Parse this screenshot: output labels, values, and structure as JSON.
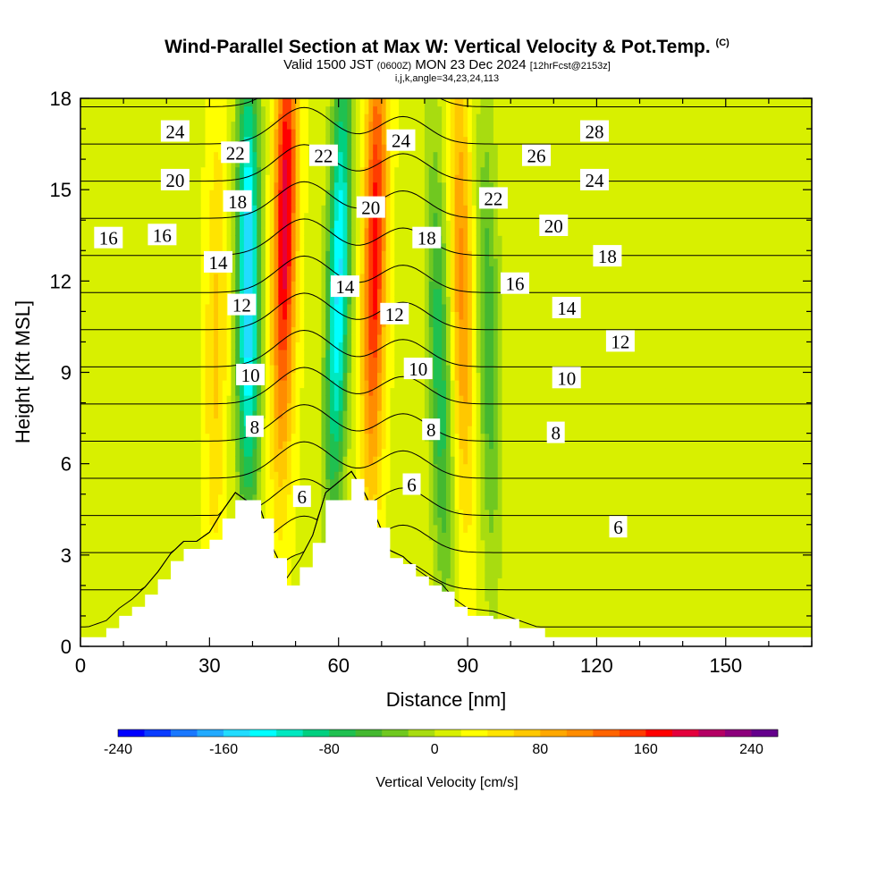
{
  "title": {
    "main": "Wind-Parallel Section at Max W: Vertical Velocity & Pot.Temp.",
    "copyright": "(C)",
    "valid_prefix": "Valid 1500 JST",
    "valid_utc": "(0600Z)",
    "valid_date": "MON 23 Dec 2024",
    "forecast": "[12hrFcst@2153z]",
    "params": "i,j,k,angle=34,23,24,113"
  },
  "chart_data": {
    "type": "heatmap",
    "xlabel": "Distance [nm]",
    "ylabel": "Height [Kft MSL]",
    "xlim": [
      0,
      170
    ],
    "ylim": [
      0,
      18
    ],
    "x_ticks": [
      0,
      30,
      60,
      90,
      120,
      150
    ],
    "x_tick_labels": [
      "0",
      "30",
      "60",
      "90",
      "120",
      "150"
    ],
    "y_ticks": [
      0,
      3,
      6,
      9,
      12,
      15,
      18
    ],
    "y_tick_labels": [
      "0",
      "3",
      "6",
      "9",
      "12",
      "15",
      "18"
    ],
    "background_w_cms": 15,
    "updraft_bands": [
      {
        "x_base": 46,
        "x_top": 48,
        "peak_w_cms": 180,
        "peak_height_kft": 14
      },
      {
        "x_base": 67,
        "x_top": 69,
        "peak_w_cms": 160,
        "peak_height_kft": 13
      },
      {
        "x_base": 90,
        "x_top": 88,
        "peak_w_cms": 90,
        "peak_height_kft": 12
      },
      {
        "x_base": 31,
        "x_top": 32,
        "peak_w_cms": 50,
        "peak_height_kft": 10
      }
    ],
    "downdraft_bands": [
      {
        "x_base": 39,
        "x_top": 39,
        "peak_w_cms": -180,
        "peak_height_kft": 12
      },
      {
        "x_base": 58,
        "x_top": 61,
        "peak_w_cms": -160,
        "peak_height_kft": 12
      },
      {
        "x_base": 85,
        "x_top": 82,
        "peak_w_cms": -90,
        "peak_height_kft": 9
      },
      {
        "x_base": 96,
        "x_top": 94,
        "peak_w_cms": -70,
        "peak_height_kft": 10
      }
    ],
    "terrain_profile": {
      "x": [
        0,
        6,
        9,
        12,
        15,
        18,
        21,
        24,
        27,
        30,
        33,
        36,
        42,
        45,
        48,
        51,
        54,
        57,
        63,
        66,
        69,
        72,
        75,
        78,
        81,
        84,
        87,
        90,
        96,
        102,
        108,
        170
      ],
      "height_kft": [
        0.3,
        0.6,
        1.0,
        1.3,
        1.7,
        2.2,
        2.8,
        3.2,
        3.2,
        3.5,
        4.2,
        4.8,
        4.2,
        2.9,
        2.0,
        2.6,
        3.4,
        4.8,
        5.5,
        4.8,
        3.9,
        2.9,
        2.7,
        2.3,
        2.0,
        1.8,
        1.3,
        1.0,
        0.9,
        0.6,
        0.3,
        0.3
      ]
    },
    "theta_contours": {
      "levels": [
        6,
        8,
        10,
        12,
        14,
        16,
        18,
        20,
        22,
        24,
        26,
        28
      ],
      "contour_labels": [
        {
          "text": "24",
          "x": 22,
          "y": 16.9
        },
        {
          "text": "22",
          "x": 36,
          "y": 16.2
        },
        {
          "text": "20",
          "x": 22,
          "y": 15.3
        },
        {
          "text": "18",
          "x": 36.5,
          "y": 14.6
        },
        {
          "text": "16",
          "x": 6.5,
          "y": 13.4
        },
        {
          "text": "16",
          "x": 19,
          "y": 13.5
        },
        {
          "text": "14",
          "x": 32,
          "y": 12.6
        },
        {
          "text": "12",
          "x": 37.5,
          "y": 11.2
        },
        {
          "text": "10",
          "x": 39.5,
          "y": 8.9
        },
        {
          "text": "8",
          "x": 40.5,
          "y": 7.2
        },
        {
          "text": "6",
          "x": 51.5,
          "y": 4.9
        },
        {
          "text": "22",
          "x": 56.5,
          "y": 16.1
        },
        {
          "text": "14",
          "x": 61.5,
          "y": 11.8
        },
        {
          "text": "20",
          "x": 67.5,
          "y": 14.4
        },
        {
          "text": "24",
          "x": 74.5,
          "y": 16.6
        },
        {
          "text": "12",
          "x": 73,
          "y": 10.9
        },
        {
          "text": "18",
          "x": 80.5,
          "y": 13.4
        },
        {
          "text": "10",
          "x": 78.5,
          "y": 9.1
        },
        {
          "text": "8",
          "x": 81.5,
          "y": 7.1
        },
        {
          "text": "6",
          "x": 77,
          "y": 5.3
        },
        {
          "text": "22",
          "x": 96,
          "y": 14.7
        },
        {
          "text": "16",
          "x": 101,
          "y": 11.9
        },
        {
          "text": "26",
          "x": 106,
          "y": 16.1
        },
        {
          "text": "20",
          "x": 110,
          "y": 13.8
        },
        {
          "text": "14",
          "x": 113,
          "y": 11.1
        },
        {
          "text": "10",
          "x": 113,
          "y": 8.8
        },
        {
          "text": "8",
          "x": 110.5,
          "y": 7.0
        },
        {
          "text": "28",
          "x": 119.5,
          "y": 16.9
        },
        {
          "text": "24",
          "x": 119.5,
          "y": 15.3
        },
        {
          "text": "18",
          "x": 122.5,
          "y": 12.8
        },
        {
          "text": "12",
          "x": 125.5,
          "y": 10.0
        },
        {
          "text": "6",
          "x": 125,
          "y": 3.9
        }
      ]
    },
    "colorbar": {
      "label": "Vertical Velocity [cm/s]",
      "min": -240,
      "max": 260,
      "step": 20,
      "tick_values": [
        -240,
        -160,
        -80,
        0,
        80,
        160,
        240
      ],
      "tick_labels": [
        "-240",
        "-160",
        "-80",
        "0",
        "80",
        "160",
        "240"
      ],
      "colors": [
        "#0000ff",
        "#0a3cff",
        "#1a78ff",
        "#22aaff",
        "#22dcff",
        "#00ffff",
        "#00e8c0",
        "#00d080",
        "#20c050",
        "#44b830",
        "#70c820",
        "#a8dc10",
        "#d8f000",
        "#ffff00",
        "#ffe400",
        "#ffc800",
        "#ffa800",
        "#ff8c00",
        "#ff6400",
        "#ff3c00",
        "#ff0000",
        "#e4003c",
        "#b40064",
        "#8c007c",
        "#64008c"
      ]
    }
  }
}
